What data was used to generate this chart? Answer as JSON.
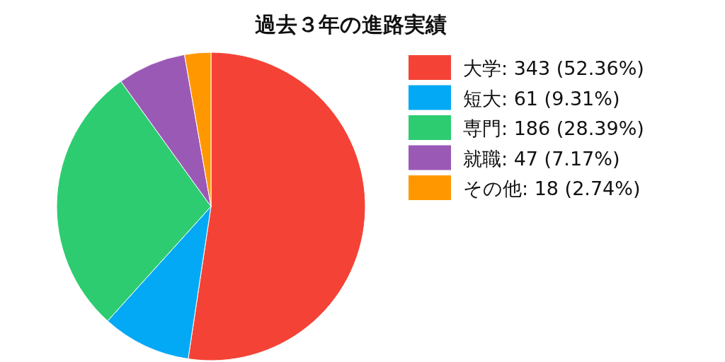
{
  "chart_data": {
    "type": "pie",
    "title": "過去３年の進路実績",
    "categories": [
      "大学: 343 (52.36%)",
      "短大: 61 (9.31%)",
      "専門: 186 (28.39%)",
      "就職: 47 (7.17%)",
      "その他: 18 (2.74%)"
    ],
    "values": [
      343,
      61,
      186,
      47,
      18
    ],
    "colors": [
      "#f44336",
      "#03a9f4",
      "#2ecc71",
      "#9b59b6",
      "#ff9800"
    ],
    "legend": "right"
  }
}
